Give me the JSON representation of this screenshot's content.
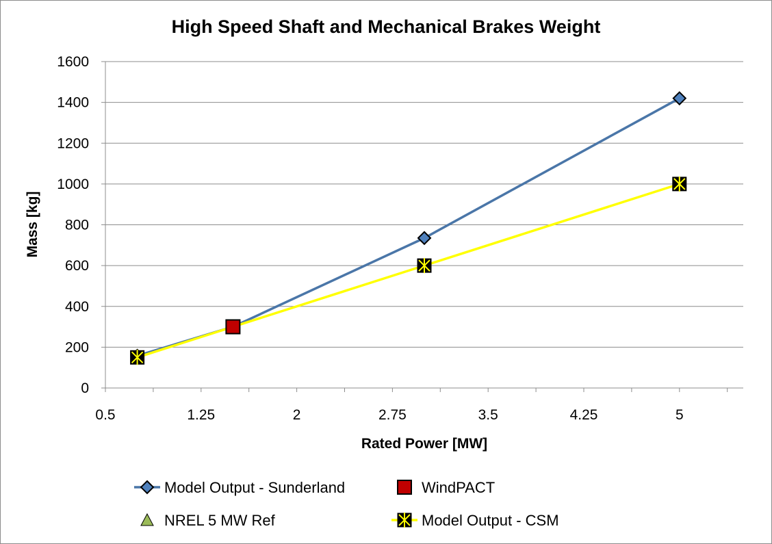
{
  "chart_data": {
    "type": "line",
    "title": "High Speed Shaft and Mechanical Brakes Weight",
    "xlabel": "Rated Power [MW]",
    "ylabel": "Mass [kg]",
    "xlim": [
      0.5,
      5.5
    ],
    "ylim": [
      0,
      1600
    ],
    "xticks": [
      0.5,
      1.25,
      2,
      2.75,
      3.5,
      4.25,
      5
    ],
    "xtick_labels": [
      "0.5",
      "1.25",
      "2",
      "2.75",
      "3.5",
      "4.25",
      "5"
    ],
    "yticks": [
      0,
      200,
      400,
      600,
      800,
      1000,
      1200,
      1400,
      1600
    ],
    "ytick_labels": [
      "0",
      "200",
      "400",
      "600",
      "800",
      "1000",
      "1200",
      "1400",
      "1600"
    ],
    "grid": "horizontal",
    "legend_position": "bottom",
    "series": [
      {
        "name": "Model Output - Sunderland",
        "marker": "diamond",
        "line": true,
        "line_color": "#4a76a8",
        "marker_color": "#4f81bd",
        "points": [
          [
            0.75,
            158
          ],
          [
            1.5,
            300
          ],
          [
            3.0,
            735
          ],
          [
            5.0,
            1420
          ]
        ]
      },
      {
        "name": "WindPACT",
        "marker": "square",
        "line": false,
        "marker_color": "#c00000",
        "points": [
          [
            1.5,
            300
          ]
        ]
      },
      {
        "name": "NREL 5 MW Ref",
        "marker": "triangle",
        "line": false,
        "marker_color": "#9bbb59",
        "points": []
      },
      {
        "name": "Model Output - CSM",
        "marker": "x-square",
        "line": true,
        "line_color": "#ffff00",
        "marker_color": "#ffff00",
        "points": [
          [
            0.75,
            150
          ],
          [
            1.5,
            300
          ],
          [
            3.0,
            600
          ],
          [
            5.0,
            1000
          ]
        ]
      }
    ]
  }
}
